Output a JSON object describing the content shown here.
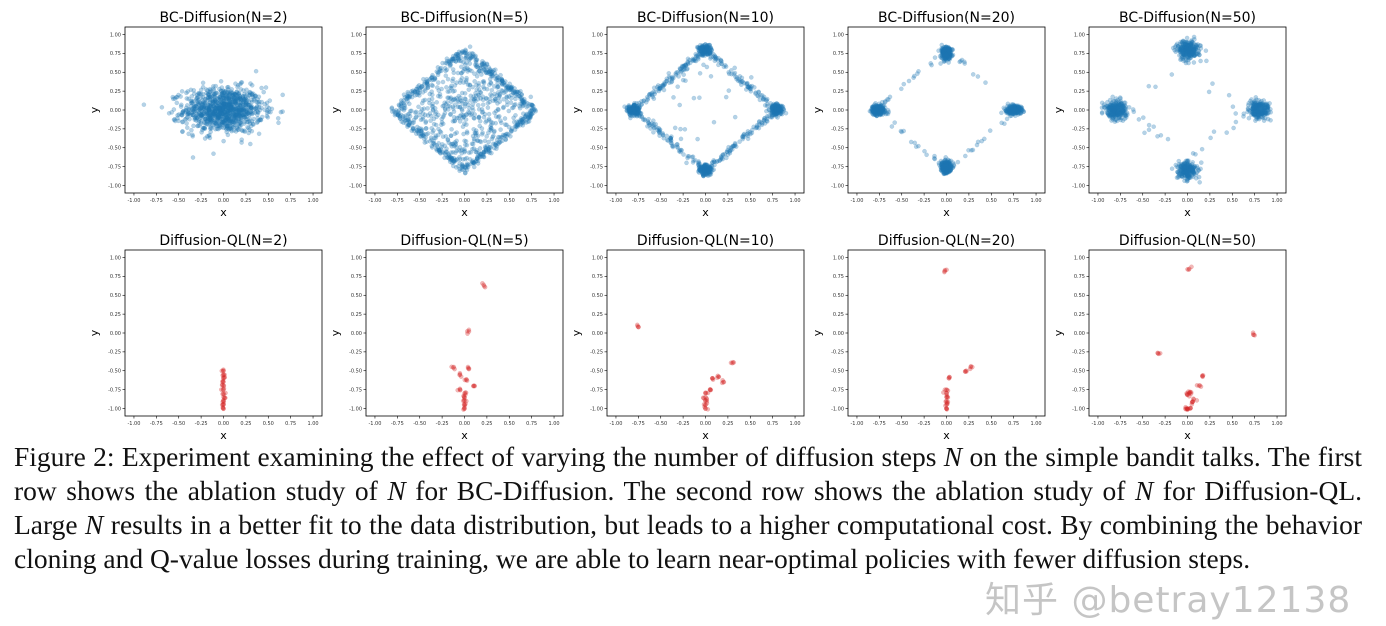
{
  "chart_data": [
    {
      "type": "scatter",
      "title": "BC-Diffusion(N=2)",
      "xlabel": "x",
      "ylabel": "y",
      "xlim": [
        -1.1,
        1.1
      ],
      "ylim": [
        -1.1,
        1.1
      ],
      "color": "#1f77b4",
      "grid": false,
      "distribution": {
        "shape": "gaussian",
        "center": [
          0,
          0
        ],
        "std": [
          0.22,
          0.15
        ],
        "count": 1000
      }
    },
    {
      "type": "scatter",
      "title": "BC-Diffusion(N=5)",
      "xlabel": "x",
      "ylabel": "y",
      "xlim": [
        -1.1,
        1.1
      ],
      "ylim": [
        -1.1,
        1.1
      ],
      "color": "#1f77b4",
      "grid": false,
      "distribution": {
        "shape": "filled-diamond",
        "vertices": [
          [
            0.8,
            0
          ],
          [
            0,
            0.8
          ],
          [
            -0.8,
            0
          ],
          [
            0,
            -0.8
          ]
        ],
        "count": 1000
      }
    },
    {
      "type": "scatter",
      "title": "BC-Diffusion(N=10)",
      "xlabel": "x",
      "ylabel": "y",
      "xlim": [
        -1.1,
        1.1
      ],
      "ylim": [
        -1.1,
        1.1
      ],
      "color": "#1f77b4",
      "grid": false,
      "distribution": {
        "shape": "diamond-edge",
        "vertices": [
          [
            0.8,
            0
          ],
          [
            0,
            0.8
          ],
          [
            -0.8,
            0
          ],
          [
            0,
            -0.8
          ]
        ],
        "count": 1000
      }
    },
    {
      "type": "scatter",
      "title": "BC-Diffusion(N=20)",
      "xlabel": "x",
      "ylabel": "y",
      "xlim": [
        -1.1,
        1.1
      ],
      "ylim": [
        -1.1,
        1.1
      ],
      "color": "#1f77b4",
      "grid": false,
      "distribution": {
        "shape": "vertex-clusters-sparse-edge",
        "vertices": [
          [
            0.8,
            0
          ],
          [
            0,
            0.8
          ],
          [
            -0.8,
            0
          ],
          [
            0,
            -0.8
          ]
        ],
        "count": 1000
      }
    },
    {
      "type": "scatter",
      "title": "BC-Diffusion(N=50)",
      "xlabel": "x",
      "ylabel": "y",
      "xlim": [
        -1.1,
        1.1
      ],
      "ylim": [
        -1.1,
        1.1
      ],
      "color": "#1f77b4",
      "grid": false,
      "distribution": {
        "shape": "vertex-clusters",
        "vertices": [
          [
            0.8,
            0
          ],
          [
            0,
            0.8
          ],
          [
            -0.8,
            0
          ],
          [
            0,
            -0.8
          ]
        ],
        "std": 0.06,
        "count": 1000
      }
    },
    {
      "type": "scatter",
      "title": "Diffusion-QL(N=2)",
      "xlabel": "x",
      "ylabel": "y",
      "xlim": [
        -1.1,
        1.1
      ],
      "ylim": [
        -1.1,
        1.1
      ],
      "color": "#d62728",
      "grid": false,
      "points": [
        [
          0,
          -0.5
        ],
        [
          0,
          -0.55
        ],
        [
          0,
          -0.6
        ],
        [
          0,
          -0.65
        ],
        [
          0,
          -0.7
        ],
        [
          0,
          -0.75
        ],
        [
          0,
          -0.8
        ],
        [
          0,
          -0.85
        ],
        [
          0,
          -0.9
        ],
        [
          0,
          -0.95
        ],
        [
          0,
          -1.0
        ]
      ]
    },
    {
      "type": "scatter",
      "title": "Diffusion-QL(N=5)",
      "xlabel": "x",
      "ylabel": "y",
      "xlim": [
        -1.1,
        1.1
      ],
      "ylim": [
        -1.1,
        1.1
      ],
      "color": "#d62728",
      "grid": false,
      "points": [
        [
          0.22,
          0.62
        ],
        [
          0.05,
          0.02
        ],
        [
          -0.12,
          -0.45
        ],
        [
          0.05,
          -0.47
        ],
        [
          -0.05,
          -0.55
        ],
        [
          0.02,
          -0.62
        ],
        [
          0.1,
          -0.7
        ],
        [
          -0.05,
          -0.75
        ],
        [
          0,
          -0.8
        ],
        [
          0,
          -0.85
        ],
        [
          0,
          -0.9
        ],
        [
          0,
          -0.95
        ],
        [
          0,
          -1.0
        ]
      ]
    },
    {
      "type": "scatter",
      "title": "Diffusion-QL(N=10)",
      "xlabel": "x",
      "ylabel": "y",
      "xlim": [
        -1.1,
        1.1
      ],
      "ylim": [
        -1.1,
        1.1
      ],
      "color": "#d62728",
      "grid": false,
      "points": [
        [
          -0.75,
          0.08
        ],
        [
          0.3,
          -0.4
        ],
        [
          0.15,
          -0.58
        ],
        [
          0.08,
          -0.6
        ],
        [
          0.2,
          -0.65
        ],
        [
          0.05,
          -0.75
        ],
        [
          0,
          -0.8
        ],
        [
          0,
          -0.85
        ],
        [
          0,
          -0.9
        ],
        [
          0,
          -0.95
        ],
        [
          0,
          -1.0
        ]
      ]
    },
    {
      "type": "scatter",
      "title": "Diffusion-QL(N=20)",
      "xlabel": "x",
      "ylabel": "y",
      "xlim": [
        -1.1,
        1.1
      ],
      "ylim": [
        -1.1,
        1.1
      ],
      "color": "#d62728",
      "grid": false,
      "points": [
        [
          -0.02,
          0.82
        ],
        [
          0.27,
          -0.45
        ],
        [
          0.22,
          -0.5
        ],
        [
          0.03,
          -0.6
        ],
        [
          0,
          -0.75
        ],
        [
          0,
          -0.8
        ],
        [
          0,
          -0.85
        ],
        [
          0,
          -0.9
        ],
        [
          0,
          -0.95
        ],
        [
          0,
          -1.0
        ]
      ]
    },
    {
      "type": "scatter",
      "title": "Diffusion-QL(N=50)",
      "xlabel": "x",
      "ylabel": "y",
      "xlim": [
        -1.1,
        1.1
      ],
      "ylim": [
        -1.1,
        1.1
      ],
      "color": "#d62728",
      "grid": false,
      "points": [
        [
          0.02,
          0.85
        ],
        [
          0.75,
          -0.03
        ],
        [
          -0.33,
          -0.27
        ],
        [
          0.17,
          -0.58
        ],
        [
          0.13,
          -0.7
        ],
        [
          0.07,
          -0.88
        ],
        [
          0.05,
          -0.92
        ],
        [
          0.02,
          -0.8
        ],
        [
          0.0,
          -0.82
        ],
        [
          0.03,
          -0.78
        ],
        [
          0,
          -1.0
        ],
        [
          0.03,
          -1.0
        ],
        [
          -0.02,
          -1.0
        ]
      ]
    }
  ],
  "ticks": [
    "-1.00",
    "-0.75",
    "-0.50",
    "-0.25",
    "0.00",
    "0.25",
    "0.50",
    "0.75",
    "1.00"
  ],
  "caption": [
    {
      "t": "Figure 2: Experiment examining the effect of varying the number of diffusion steps ",
      "i": false
    },
    {
      "t": "N",
      "i": true
    },
    {
      "t": " on the simple bandit talks. The first row shows the ablation study of ",
      "i": false
    },
    {
      "t": "N",
      "i": true
    },
    {
      "t": " for BC-Diffusion. The second row shows the ablation study of ",
      "i": false
    },
    {
      "t": "N",
      "i": true
    },
    {
      "t": " for Diffusion-QL. Large ",
      "i": false
    },
    {
      "t": "N",
      "i": true
    },
    {
      "t": " results in a better fit to the data distribution, but leads to a higher computational cost. By combining the behavior cloning and Q-value losses during training, we are able to learn near-optimal policies with fewer diffusion steps.",
      "i": false
    }
  ],
  "watermark": "知乎 @betray12138"
}
